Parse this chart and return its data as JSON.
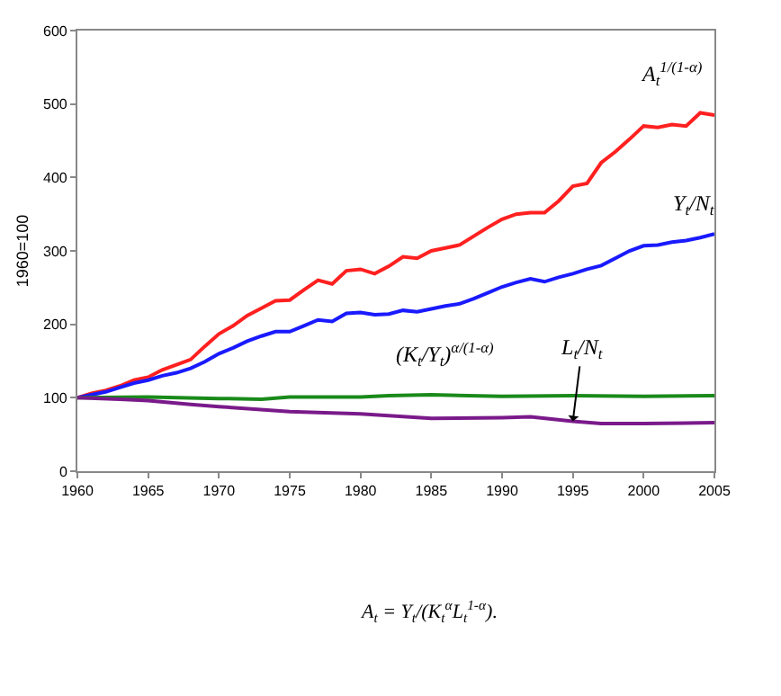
{
  "chart_data": {
    "type": "line",
    "ylabel": "1960=100",
    "xlim": [
      1960,
      2005
    ],
    "xticks": [
      1960,
      1965,
      1970,
      1975,
      1980,
      1985,
      1990,
      1995,
      2000,
      2005
    ],
    "ylim": [
      0,
      600
    ],
    "yticks": [
      0,
      100,
      200,
      300,
      400,
      500,
      600
    ],
    "legend": false,
    "marker": "none",
    "line_style": "solid",
    "series": [
      {
        "name": "A$_{t}$$^{1/(1-α)}$",
        "color": "#ff2020",
        "x": [
          1960,
          1961,
          1962,
          1963,
          1964,
          1965,
          1966,
          1967,
          1968,
          1969,
          1970,
          1971,
          1972,
          1973,
          1974,
          1975,
          1976,
          1977,
          1978,
          1979,
          1980,
          1981,
          1982,
          1983,
          1984,
          1985,
          1986,
          1987,
          1988,
          1989,
          1990,
          1991,
          1992,
          1993,
          1994,
          1995,
          1996,
          1997,
          1998,
          1999,
          2000,
          2001,
          2002,
          2003,
          2004,
          2005
        ],
        "values": [
          100,
          106,
          110,
          116,
          124,
          128,
          138,
          145,
          152,
          170,
          187,
          198,
          212,
          222,
          232,
          233,
          247,
          260,
          255,
          273,
          275,
          269,
          279,
          292,
          290,
          300,
          304,
          308,
          320,
          332,
          343,
          350,
          352,
          352,
          368,
          388,
          392,
          420,
          435,
          452,
          470,
          468,
          472,
          470,
          488,
          485
        ]
      },
      {
        "name": "Y$_{t}$/N$_{t}$",
        "color": "#1a1aff",
        "x": [
          1960,
          1961,
          1962,
          1963,
          1964,
          1965,
          1966,
          1967,
          1968,
          1969,
          1970,
          1971,
          1972,
          1973,
          1974,
          1975,
          1976,
          1977,
          1978,
          1979,
          1980,
          1981,
          1982,
          1983,
          1984,
          1985,
          1986,
          1987,
          1988,
          1989,
          1990,
          1991,
          1992,
          1993,
          1994,
          1995,
          1996,
          1997,
          1998,
          1999,
          2000,
          2001,
          2002,
          2003,
          2004,
          2005
        ],
        "values": [
          100,
          104,
          108,
          114,
          120,
          124,
          130,
          134,
          140,
          149,
          160,
          168,
          177,
          184,
          190,
          190,
          198,
          206,
          204,
          215,
          216,
          213,
          214,
          219,
          217,
          221,
          225,
          228,
          235,
          243,
          251,
          257,
          262,
          258,
          264,
          269,
          275,
          280,
          290,
          300,
          307,
          308,
          312,
          314,
          318,
          323
        ]
      },
      {
        "name": "(K$_{t}$/Y$_{t}$)$^{α/(1-α)}$",
        "color": "#1a8a1a",
        "x": [
          1960,
          1965,
          1970,
          1973,
          1975,
          1980,
          1982,
          1985,
          1990,
          1995,
          2000,
          2005
        ],
        "values": [
          100,
          101,
          99,
          98,
          101,
          101,
          103,
          104,
          102,
          103,
          102,
          103
        ]
      },
      {
        "name": "L$_{t}$/N$_{t}$",
        "color": "#7a1a8a",
        "x": [
          1960,
          1963,
          1965,
          1968,
          1970,
          1975,
          1980,
          1985,
          1990,
          1992,
          1995,
          1997,
          2000,
          2005
        ],
        "values": [
          100,
          98,
          96,
          91,
          88,
          81,
          78,
          72,
          73,
          74,
          68,
          65,
          65,
          66
        ]
      }
    ],
    "annotations": [
      "A$_{t}$ = Y$_{t}$/(K$_{t}$$^{α}$L$_{t}$$^{1-α}$)."
    ]
  }
}
